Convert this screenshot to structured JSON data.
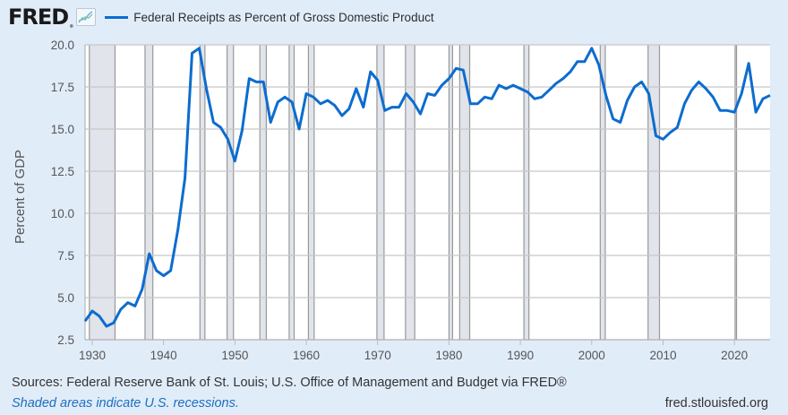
{
  "header": {
    "logo_text": "FRED",
    "logo_reg": "®",
    "logo_icon": "line-chart-icon",
    "legend_label": "Federal Receipts as Percent of Gross Domestic Product"
  },
  "footer": {
    "sources": "Sources: Federal Reserve Bank of St. Louis; U.S. Office of Management and Budget via FRED®",
    "recession_note": "Shaded areas indicate U.S. recessions.",
    "url": "fred.stlouisfed.org"
  },
  "colors": {
    "series": "#0c6ccf",
    "recession": "#e1e4ea",
    "background": "#e1ecf9",
    "plot_bg": "#ffffff",
    "grid": "#c8c8c8"
  },
  "chart_data": {
    "type": "line",
    "title": "Federal Receipts as Percent of Gross Domestic Product",
    "xlabel": "",
    "ylabel": "Percent of GDP",
    "xlim": [
      1929,
      2025
    ],
    "ylim": [
      2.5,
      20.0
    ],
    "yticks": [
      2.5,
      5.0,
      7.5,
      10.0,
      12.5,
      15.0,
      17.5,
      20.0
    ],
    "ytick_labels": [
      "2.5",
      "5.0",
      "7.5",
      "10.0",
      "12.5",
      "15.0",
      "17.5",
      "20.0"
    ],
    "xticks": [
      1930,
      1940,
      1950,
      1960,
      1970,
      1980,
      1990,
      2000,
      2010,
      2020
    ],
    "xtick_labels": [
      "1930",
      "1940",
      "1950",
      "1960",
      "1970",
      "1980",
      "1990",
      "2000",
      "2010",
      "2020"
    ],
    "grid": true,
    "legend": "top-left",
    "series": [
      {
        "name": "Federal Receipts as Percent of Gross Domestic Product",
        "x": [
          1929,
          1930,
          1931,
          1932,
          1933,
          1934,
          1935,
          1936,
          1937,
          1938,
          1939,
          1940,
          1941,
          1942,
          1943,
          1944,
          1945,
          1946,
          1947,
          1948,
          1949,
          1950,
          1951,
          1952,
          1953,
          1954,
          1955,
          1956,
          1957,
          1958,
          1959,
          1960,
          1961,
          1962,
          1963,
          1964,
          1965,
          1966,
          1967,
          1968,
          1969,
          1970,
          1971,
          1972,
          1973,
          1974,
          1975,
          1976,
          1977,
          1978,
          1979,
          1980,
          1981,
          1982,
          1983,
          1984,
          1985,
          1986,
          1987,
          1988,
          1989,
          1990,
          1991,
          1992,
          1993,
          1994,
          1995,
          1996,
          1997,
          1998,
          1999,
          2000,
          2001,
          2002,
          2003,
          2004,
          2005,
          2006,
          2007,
          2008,
          2009,
          2010,
          2011,
          2012,
          2013,
          2014,
          2015,
          2016,
          2017,
          2018,
          2019,
          2020,
          2021,
          2022,
          2023,
          2024,
          2025
        ],
        "values": [
          3.6,
          4.2,
          3.9,
          3.3,
          3.5,
          4.3,
          4.7,
          4.5,
          5.5,
          7.6,
          6.6,
          6.3,
          6.6,
          9.0,
          12.1,
          19.5,
          19.8,
          17.4,
          15.4,
          15.1,
          14.4,
          13.1,
          14.9,
          18.0,
          17.8,
          17.8,
          15.4,
          16.6,
          16.9,
          16.6,
          15.0,
          17.1,
          16.9,
          16.5,
          16.7,
          16.4,
          15.8,
          16.2,
          17.4,
          16.3,
          18.4,
          17.9,
          16.1,
          16.3,
          16.3,
          17.1,
          16.6,
          15.9,
          17.1,
          17.0,
          17.6,
          18.0,
          18.6,
          18.5,
          16.5,
          16.5,
          16.9,
          16.8,
          17.6,
          17.4,
          17.6,
          17.4,
          17.2,
          16.8,
          16.9,
          17.3,
          17.7,
          18.0,
          18.4,
          19.0,
          19.0,
          19.8,
          18.8,
          17.0,
          15.6,
          15.4,
          16.7,
          17.5,
          17.8,
          17.1,
          14.6,
          14.4,
          14.8,
          15.1,
          16.5,
          17.3,
          17.8,
          17.4,
          16.9,
          16.1,
          16.1,
          16.0,
          17.1,
          18.9,
          16.0,
          16.8,
          17.0
        ]
      }
    ],
    "recessions": [
      [
        1929.6,
        1933.2
      ],
      [
        1937.4,
        1938.5
      ],
      [
        1945.1,
        1945.8
      ],
      [
        1948.9,
        1949.8
      ],
      [
        1953.5,
        1954.4
      ],
      [
        1957.6,
        1958.3
      ],
      [
        1960.3,
        1961.1
      ],
      [
        1969.9,
        1970.9
      ],
      [
        1973.9,
        1975.2
      ],
      [
        1980.0,
        1980.5
      ],
      [
        1981.5,
        1982.9
      ],
      [
        1990.5,
        1991.2
      ],
      [
        2001.2,
        2001.9
      ],
      [
        2007.9,
        2009.5
      ],
      [
        2020.1,
        2020.3
      ]
    ]
  }
}
